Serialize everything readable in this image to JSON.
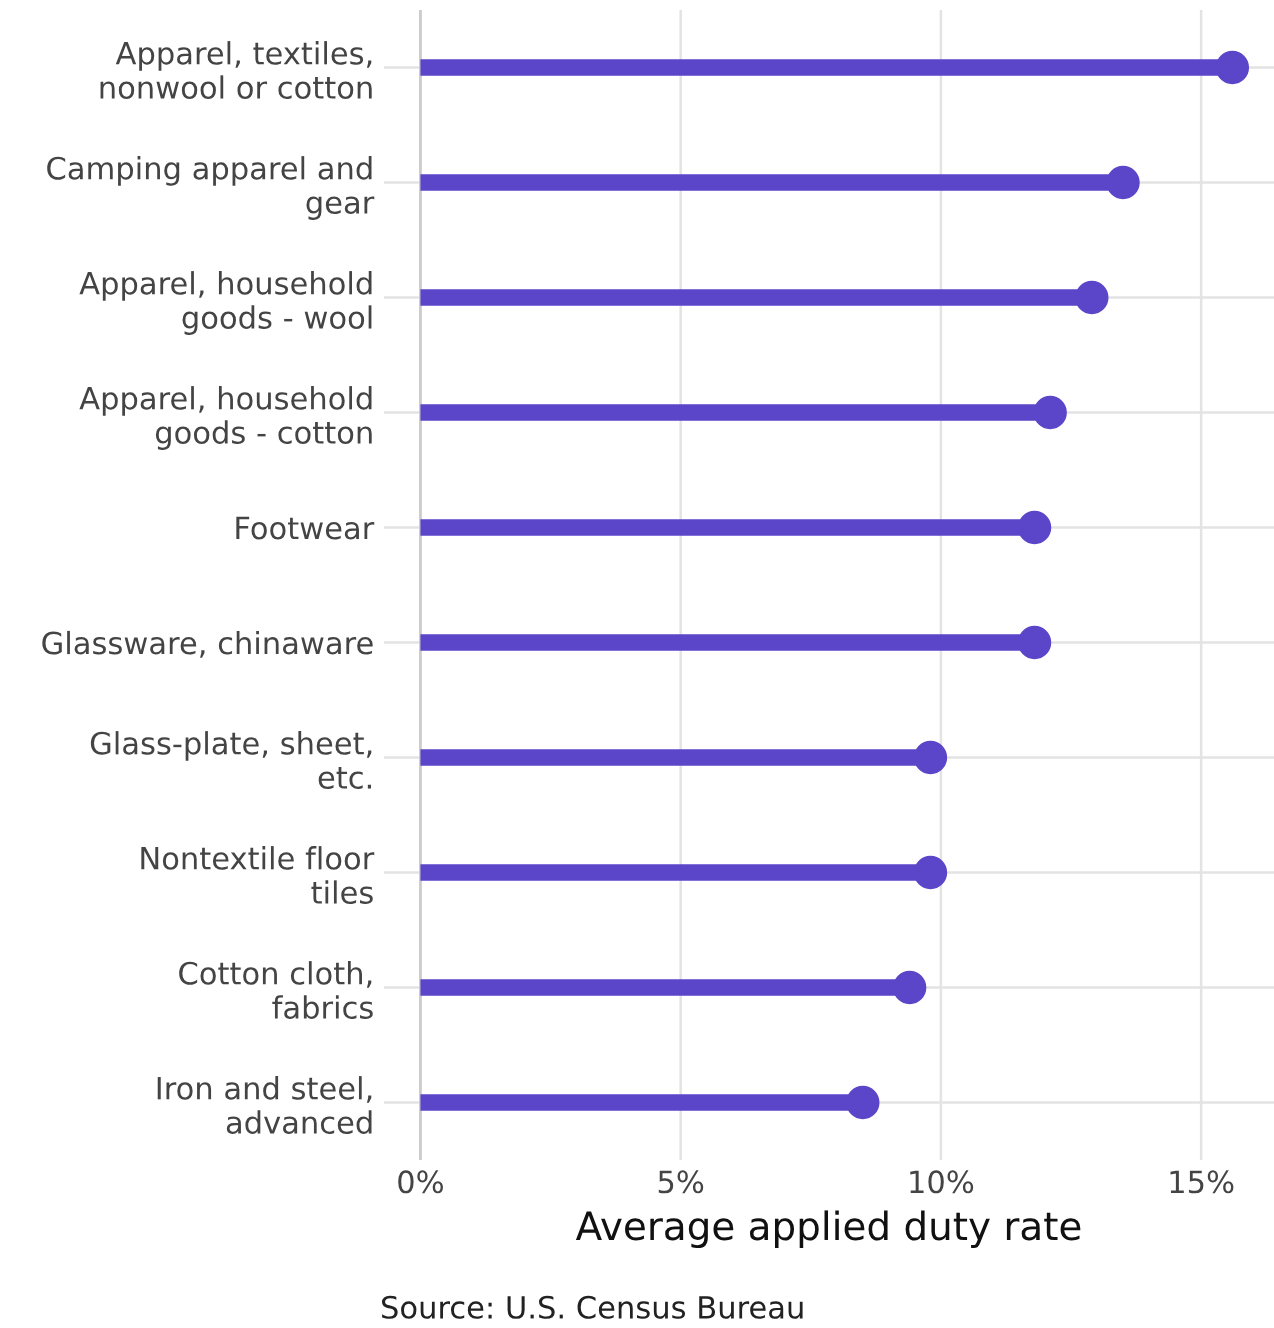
{
  "chart_data": {
    "type": "lollipop",
    "orientation": "horizontal",
    "categories": [
      "Apparel, textiles,\nnonwool or cotton",
      "Camping apparel and\ngear",
      "Apparel, household\ngoods - wool",
      "Apparel, household\ngoods - cotton",
      "Footwear",
      "Glassware, chinaware",
      "Glass-plate, sheet,\netc.",
      "Nontextile floor\ntiles",
      "Cotton cloth,\nfabrics",
      "Iron and steel,\nadvanced"
    ],
    "values": [
      15.6,
      13.5,
      12.9,
      12.1,
      11.8,
      11.8,
      9.8,
      9.8,
      9.4,
      8.5
    ],
    "color": "#5b45c8",
    "xlabel": "Average applied duty rate",
    "xlim": [
      -0.7,
      16.4
    ],
    "xticks": [
      {
        "value": 0,
        "label": "0%"
      },
      {
        "value": 5,
        "label": "5%"
      },
      {
        "value": 10,
        "label": "10%"
      },
      {
        "value": 15,
        "label": "15%"
      }
    ],
    "grid": true,
    "marker": "circle",
    "annotations": [
      "Source: U.S. Census Bureau"
    ]
  }
}
